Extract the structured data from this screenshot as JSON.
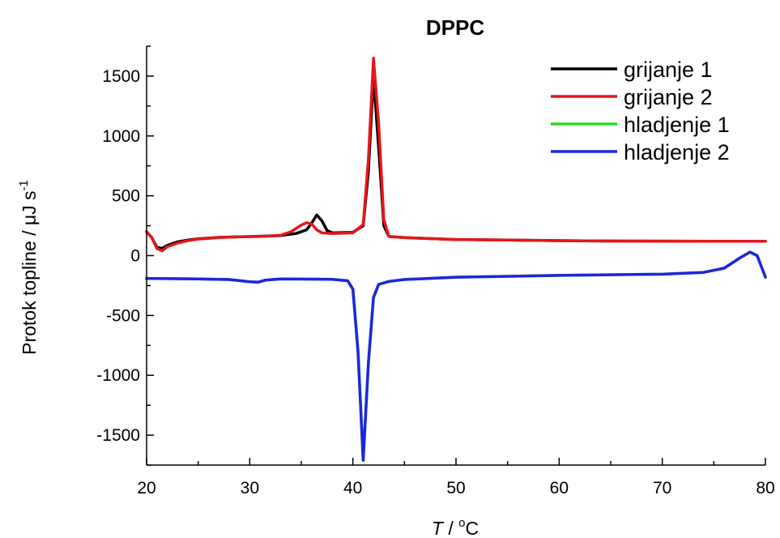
{
  "chart_data": {
    "type": "line",
    "title": "DPPC",
    "xlabel": {
      "var": "T",
      "unit_pre": " / ",
      "sup": "o",
      "unit_post": "C"
    },
    "ylabel": {
      "text": "Protok topline / μJ s",
      "sup": "-1"
    },
    "xlim": [
      20,
      80
    ],
    "ylim": [
      -1750,
      1750
    ],
    "x_ticks": [
      20,
      30,
      40,
      50,
      60,
      70,
      80
    ],
    "x_tick_labels": [
      "20",
      "30",
      "40",
      "50",
      "60",
      "70",
      "80"
    ],
    "y_ticks": [
      -1500,
      -1000,
      -500,
      0,
      500,
      1000,
      1500
    ],
    "y_tick_labels": [
      "-1500",
      "-1000",
      "-500",
      "0",
      "500",
      "1000",
      "1500"
    ],
    "grid": false,
    "legend_position": "top-right",
    "series": [
      {
        "name": "grijanje 1",
        "color": "#000000",
        "points": [
          [
            20,
            200
          ],
          [
            20.5,
            150
          ],
          [
            21,
            70
          ],
          [
            21.5,
            60
          ],
          [
            22,
            85
          ],
          [
            23,
            115
          ],
          [
            24,
            130
          ],
          [
            25,
            140
          ],
          [
            27,
            152
          ],
          [
            29,
            158
          ],
          [
            31,
            162
          ],
          [
            33,
            168
          ],
          [
            34.5,
            185
          ],
          [
            35.5,
            215
          ],
          [
            36,
            270
          ],
          [
            36.5,
            340
          ],
          [
            37,
            290
          ],
          [
            37.5,
            210
          ],
          [
            38,
            190
          ],
          [
            40,
            195
          ],
          [
            41,
            250
          ],
          [
            41.5,
            700
          ],
          [
            42,
            1500
          ],
          [
            42.5,
            900
          ],
          [
            43,
            250
          ],
          [
            43.5,
            160
          ],
          [
            45,
            150
          ],
          [
            50,
            135
          ],
          [
            55,
            130
          ],
          [
            60,
            125
          ],
          [
            65,
            122
          ],
          [
            70,
            121
          ],
          [
            75,
            120
          ],
          [
            80,
            120
          ]
        ]
      },
      {
        "name": "grijanje 2",
        "color": "#e8151b",
        "points": [
          [
            20,
            200
          ],
          [
            20.5,
            150
          ],
          [
            21,
            60
          ],
          [
            21.5,
            40
          ],
          [
            22,
            75
          ],
          [
            23,
            105
          ],
          [
            24,
            125
          ],
          [
            25,
            138
          ],
          [
            27,
            150
          ],
          [
            29,
            157
          ],
          [
            31,
            160
          ],
          [
            33,
            170
          ],
          [
            34,
            200
          ],
          [
            35,
            255
          ],
          [
            35.5,
            275
          ],
          [
            36,
            265
          ],
          [
            36.5,
            215
          ],
          [
            37,
            190
          ],
          [
            38,
            185
          ],
          [
            40,
            190
          ],
          [
            41,
            260
          ],
          [
            41.5,
            800
          ],
          [
            42,
            1650
          ],
          [
            42.5,
            1100
          ],
          [
            43,
            300
          ],
          [
            43.5,
            160
          ],
          [
            45,
            150
          ],
          [
            50,
            135
          ],
          [
            55,
            130
          ],
          [
            60,
            125
          ],
          [
            65,
            122
          ],
          [
            70,
            121
          ],
          [
            75,
            120
          ],
          [
            80,
            120
          ]
        ]
      },
      {
        "name": "hladjenje 1",
        "color": "#22dd22",
        "points": [
          [
            20,
            -190
          ],
          [
            25,
            -195
          ],
          [
            28,
            -200
          ],
          [
            30,
            -218
          ],
          [
            30.8,
            -222
          ],
          [
            31.5,
            -205
          ],
          [
            33,
            -195
          ],
          [
            38,
            -198
          ],
          [
            39.5,
            -210
          ],
          [
            40,
            -280
          ],
          [
            40.5,
            -800
          ],
          [
            41,
            -1710
          ],
          [
            41.5,
            -900
          ],
          [
            42,
            -350
          ],
          [
            42.5,
            -240
          ],
          [
            43.5,
            -215
          ],
          [
            45,
            -200
          ],
          [
            50,
            -180
          ],
          [
            60,
            -165
          ],
          [
            70,
            -155
          ],
          [
            74,
            -140
          ],
          [
            76,
            -105
          ],
          [
            77.5,
            -20
          ],
          [
            78.5,
            30
          ],
          [
            79.2,
            0
          ],
          [
            79.6,
            -90
          ],
          [
            80,
            -180
          ]
        ]
      },
      {
        "name": "hladjenje 2",
        "color": "#1f25e0",
        "points": [
          [
            20,
            -190
          ],
          [
            25,
            -195
          ],
          [
            28,
            -200
          ],
          [
            30,
            -218
          ],
          [
            30.8,
            -222
          ],
          [
            31.5,
            -205
          ],
          [
            33,
            -195
          ],
          [
            38,
            -198
          ],
          [
            39.5,
            -210
          ],
          [
            40,
            -280
          ],
          [
            40.5,
            -800
          ],
          [
            41,
            -1710
          ],
          [
            41.5,
            -900
          ],
          [
            42,
            -350
          ],
          [
            42.5,
            -240
          ],
          [
            43.5,
            -215
          ],
          [
            45,
            -200
          ],
          [
            50,
            -180
          ],
          [
            60,
            -165
          ],
          [
            70,
            -155
          ],
          [
            74,
            -140
          ],
          [
            76,
            -105
          ],
          [
            77.5,
            -20
          ],
          [
            78.5,
            30
          ],
          [
            79.2,
            0
          ],
          [
            79.6,
            -90
          ],
          [
            80,
            -180
          ]
        ]
      }
    ]
  }
}
